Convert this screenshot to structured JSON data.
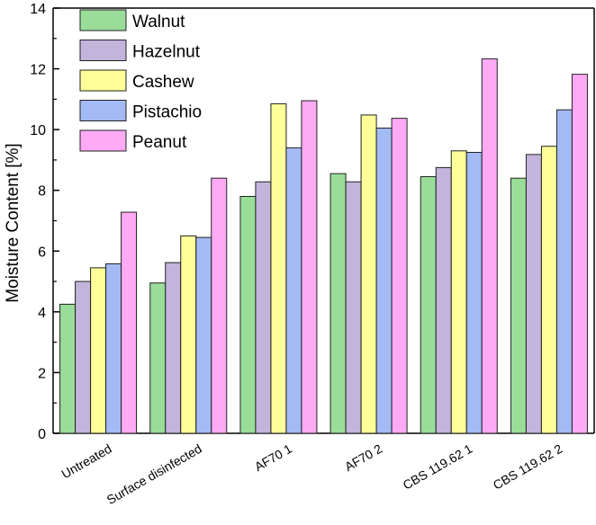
{
  "chart_data": {
    "type": "bar",
    "title": "",
    "xlabel": "",
    "ylabel": "Moisture Content [%]",
    "ylim": [
      0,
      14
    ],
    "yticks": [
      0,
      2,
      4,
      6,
      8,
      10,
      12,
      14
    ],
    "grid": false,
    "legend_position": "top-left",
    "categories": [
      "Untreated",
      "Surface disinfected",
      "AF70 1",
      "AF70 2",
      "CBS 119.62 1",
      "CBS 119.62 2"
    ],
    "series": [
      {
        "name": "Walnut",
        "color": "#99dd99",
        "values": [
          4.25,
          4.95,
          7.8,
          8.55,
          8.45,
          8.4
        ]
      },
      {
        "name": "Hazelnut",
        "color": "#c3b4dc",
        "values": [
          5.0,
          5.62,
          8.28,
          8.28,
          8.75,
          9.18
        ]
      },
      {
        "name": "Cashew",
        "color": "#ffff99",
        "values": [
          5.45,
          6.5,
          10.85,
          10.48,
          9.3,
          9.45
        ]
      },
      {
        "name": "Pistachio",
        "color": "#a3baf4",
        "values": [
          5.58,
          6.45,
          9.4,
          10.05,
          9.25,
          10.65
        ]
      },
      {
        "name": "Peanut",
        "color": "#ffaaf5",
        "values": [
          7.28,
          8.4,
          10.95,
          10.37,
          12.33,
          11.82
        ]
      }
    ]
  }
}
